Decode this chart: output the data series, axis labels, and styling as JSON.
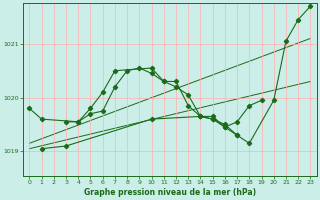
{
  "title": "Graphe pression niveau de la mer (hPa)",
  "bg_color": "#cceee8",
  "grid_color": "#ffb0b0",
  "line_color": "#1a6b1a",
  "xlim": [
    -0.5,
    23.5
  ],
  "ylim": [
    1018.55,
    1021.75
  ],
  "yticks": [
    1019,
    1020,
    1021
  ],
  "xticks": [
    0,
    1,
    2,
    3,
    4,
    5,
    6,
    7,
    8,
    9,
    10,
    11,
    12,
    13,
    14,
    15,
    16,
    17,
    18,
    19,
    20,
    21,
    22,
    23
  ],
  "trend1_x": [
    0,
    23
  ],
  "trend1_y": [
    1019.05,
    1020.3
  ],
  "trend2_x": [
    0,
    23
  ],
  "trend2_y": [
    1019.15,
    1021.1
  ],
  "series1_x": [
    0,
    1,
    4,
    5,
    6,
    7,
    8,
    9,
    10,
    11,
    12,
    13,
    14,
    15,
    16,
    17,
    18,
    19
  ],
  "series1_y": [
    1019.8,
    1019.6,
    1019.55,
    1019.7,
    1019.75,
    1020.2,
    1020.5,
    1020.55,
    1020.45,
    1020.3,
    1020.3,
    1019.85,
    1019.65,
    1019.65,
    1019.45,
    1019.55,
    1019.85,
    1019.95
  ],
  "series2_x": [
    3,
    4,
    5,
    6,
    7,
    10,
    11,
    12,
    13,
    14,
    15,
    16,
    17
  ],
  "series2_y": [
    1019.55,
    1019.55,
    1019.8,
    1020.1,
    1020.5,
    1020.55,
    1020.3,
    1020.2,
    1020.05,
    1019.65,
    1019.6,
    1019.45,
    1019.3
  ],
  "series3_x": [
    1,
    3,
    10,
    14,
    15,
    16,
    17,
    18,
    20,
    21,
    22,
    23
  ],
  "series3_y": [
    1019.05,
    1019.1,
    1019.6,
    1019.65,
    1019.6,
    1019.5,
    1019.3,
    1019.15,
    1019.95,
    1021.05,
    1021.45,
    1021.7
  ]
}
